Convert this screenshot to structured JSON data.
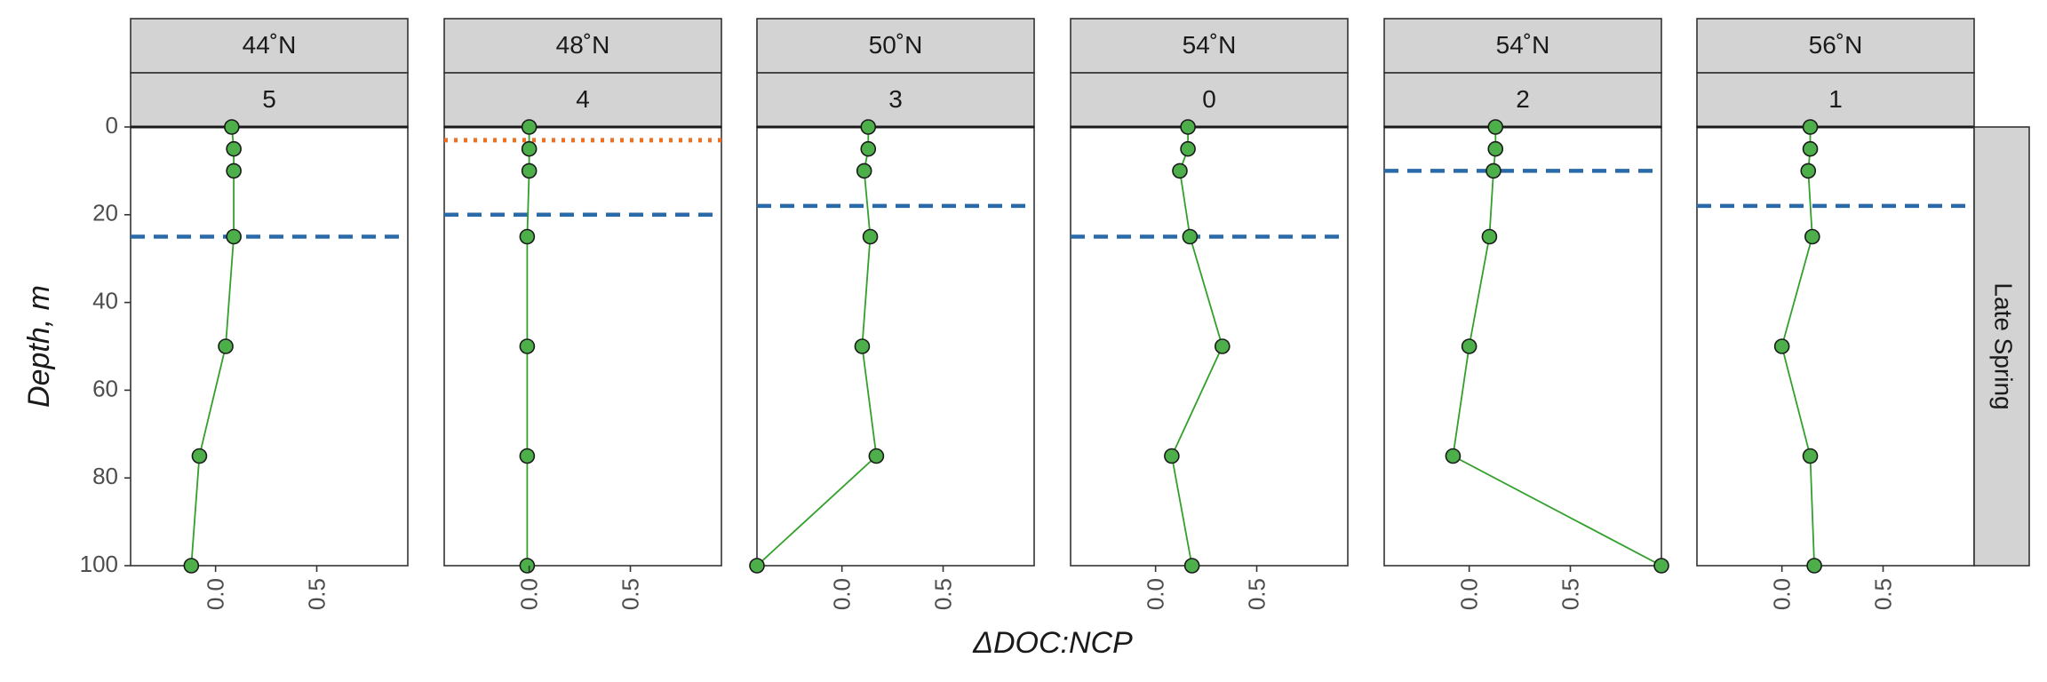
{
  "chart_data": {
    "type": "line",
    "xlabel": "ΔDOC:NCP",
    "ylabel": "Depth, m",
    "row_strip": "Late Spring",
    "x_ticks": [
      "0.0",
      "0.5"
    ],
    "y_ticks": [
      "0",
      "20",
      "40",
      "60",
      "80",
      "100"
    ],
    "xlim": [
      -0.42,
      0.95
    ],
    "ylim": [
      100,
      0
    ],
    "y_reversed": true,
    "colors": {
      "series_line": "#33a02c",
      "point_fill": "#4daf4a",
      "point_edge": "#1a1a1a",
      "mld_line": "#2b6aa8",
      "dotted_line": "#f07020",
      "strip_bg": "#d3d3d3"
    },
    "panels": [
      {
        "latitude": "44˚N",
        "station": "5",
        "mld_depth": 25,
        "dotted_depth": null,
        "points": [
          {
            "depth": 0,
            "x": 0.08
          },
          {
            "depth": 5,
            "x": 0.09
          },
          {
            "depth": 10,
            "x": 0.09
          },
          {
            "depth": 25,
            "x": 0.09
          },
          {
            "depth": 50,
            "x": 0.05
          },
          {
            "depth": 75,
            "x": -0.08
          },
          {
            "depth": 100,
            "x": -0.12
          }
        ]
      },
      {
        "latitude": "48˚N",
        "station": "4",
        "mld_depth": 20,
        "dotted_depth": 3,
        "points": [
          {
            "depth": 0,
            "x": 0.0
          },
          {
            "depth": 5,
            "x": 0.0
          },
          {
            "depth": 10,
            "x": 0.0
          },
          {
            "depth": 25,
            "x": -0.01
          },
          {
            "depth": 50,
            "x": -0.01
          },
          {
            "depth": 75,
            "x": -0.01
          },
          {
            "depth": 100,
            "x": -0.01
          }
        ]
      },
      {
        "latitude": "50˚N",
        "station": "3",
        "mld_depth": 18,
        "dotted_depth": null,
        "points": [
          {
            "depth": 0,
            "x": 0.13
          },
          {
            "depth": 5,
            "x": 0.13
          },
          {
            "depth": 10,
            "x": 0.11
          },
          {
            "depth": 25,
            "x": 0.14
          },
          {
            "depth": 50,
            "x": 0.1
          },
          {
            "depth": 75,
            "x": 0.17
          },
          {
            "depth": 100,
            "x": -0.42
          }
        ]
      },
      {
        "latitude": "54˚N",
        "station": "0",
        "mld_depth": 25,
        "dotted_depth": null,
        "points": [
          {
            "depth": 0,
            "x": 0.16
          },
          {
            "depth": 5,
            "x": 0.16
          },
          {
            "depth": 10,
            "x": 0.12
          },
          {
            "depth": 25,
            "x": 0.17
          },
          {
            "depth": 50,
            "x": 0.33
          },
          {
            "depth": 75,
            "x": 0.08
          },
          {
            "depth": 100,
            "x": 0.18
          }
        ]
      },
      {
        "latitude": "54˚N",
        "station": "2",
        "mld_depth": 10,
        "dotted_depth": null,
        "points": [
          {
            "depth": 0,
            "x": 0.13
          },
          {
            "depth": 5,
            "x": 0.13
          },
          {
            "depth": 10,
            "x": 0.12
          },
          {
            "depth": 25,
            "x": 0.1
          },
          {
            "depth": 50,
            "x": 0.0
          },
          {
            "depth": 75,
            "x": -0.08
          },
          {
            "depth": 100,
            "x": 0.95
          }
        ]
      },
      {
        "latitude": "56˚N",
        "station": "1",
        "mld_depth": 18,
        "dotted_depth": null,
        "points": [
          {
            "depth": 0,
            "x": 0.14
          },
          {
            "depth": 5,
            "x": 0.14
          },
          {
            "depth": 10,
            "x": 0.13
          },
          {
            "depth": 25,
            "x": 0.15
          },
          {
            "depth": 50,
            "x": 0.0
          },
          {
            "depth": 75,
            "x": 0.14
          },
          {
            "depth": 100,
            "x": 0.16
          }
        ]
      }
    ]
  }
}
